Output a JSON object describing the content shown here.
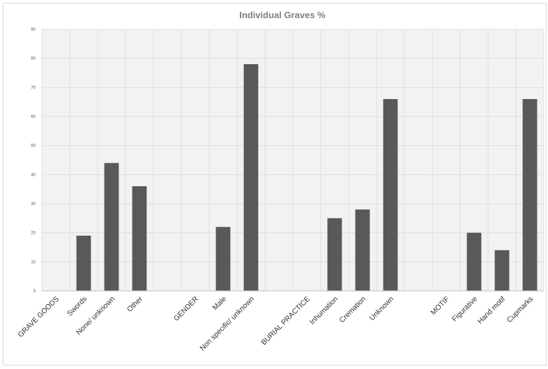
{
  "chart_data": {
    "type": "bar",
    "title": "Individual Graves %",
    "xlabel": "",
    "ylabel": "",
    "ylim": [
      0,
      90
    ],
    "yticks": [
      0,
      10,
      20,
      30,
      40,
      50,
      60,
      70,
      80,
      90
    ],
    "grid": true,
    "legend": "none",
    "bar_color": "#595959",
    "plot_background": "#f2f2f2",
    "grid_color": "#d9d9d9",
    "categories": [
      "GRAVE GOODS",
      "Swords",
      "None/ unknown",
      "Other",
      "",
      "GENDER",
      "Male",
      "Non specific/ unknown",
      "",
      "BURIAL PRACTICE",
      "Inhumation",
      "Cremation",
      "Unknown",
      "",
      "MOTIF",
      "Figurative",
      "Hand motif",
      "Cupmarks"
    ],
    "values": [
      null,
      19,
      44,
      36,
      null,
      null,
      22,
      78,
      null,
      null,
      25,
      28,
      66,
      null,
      null,
      20,
      14,
      66
    ]
  }
}
